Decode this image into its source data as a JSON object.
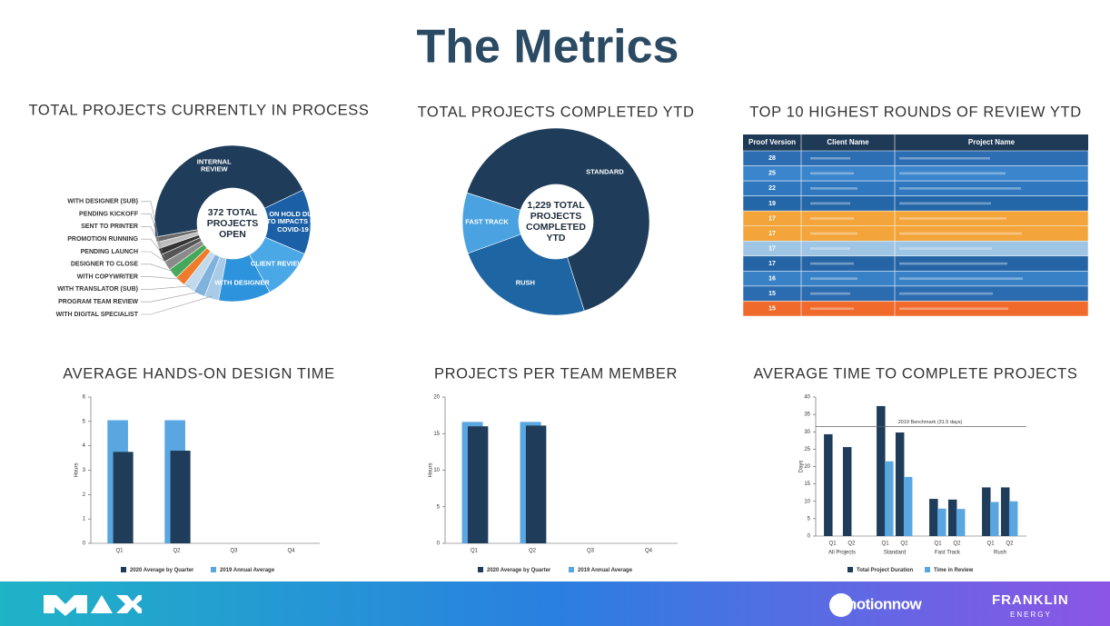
{
  "title": "The Metrics",
  "chart_data": [
    {
      "type": "pie",
      "title": "TOTAL PROJECTS CURRENTLY IN PROCESS",
      "center_label": "372 TOTAL PROJECTS OPEN",
      "categories": [
        "INTERNAL REVIEW",
        "ON HOLD DUE TO IMPACTS OF COVID-19",
        "CLIENT REVIEW",
        "WITH DESIGNER",
        "WITH DIGITAL SPECIALIST",
        "PROGRAM TEAM REVIEW",
        "WITH TRANSLATOR (SUB)",
        "WITH COPYWRITER",
        "DESIGNER TO CLOSE",
        "PENDING LAUNCH",
        "PROMOTION RUNNING",
        "SENT TO PRINTER",
        "PENDING KICKOFF",
        "WITH DESIGNER (SUB)"
      ],
      "values": [
        170,
        50,
        40,
        40,
        11,
        9,
        9,
        8,
        8,
        7,
        6,
        5,
        5,
        4
      ],
      "colors": [
        "#1f3d5a",
        "#1b5fa6",
        "#4ba8e6",
        "#2c93dc",
        "#a8cbe8",
        "#7fb2dd",
        "#c3d9ec",
        "#f07b2a",
        "#46a85a",
        "#8a8a8a",
        "#555555",
        "#333333",
        "#bdbdbd",
        "#6b6b6b"
      ]
    },
    {
      "type": "pie",
      "title": "TOTAL PROJECTS COMPLETED YTD",
      "center_label": "1,229 TOTAL PROJECTS COMPLETED YTD",
      "categories": [
        "STANDARD",
        "RUSH",
        "FAST TRACK"
      ],
      "values": [
        800,
        300,
        129
      ],
      "colors": [
        "#1f3d5a",
        "#1d65a3",
        "#4aa3e0"
      ]
    },
    {
      "type": "bar",
      "title": "AVERAGE HANDS-ON DESIGN TIME",
      "y_label": "Hours",
      "bar_mode": "overlap",
      "categories": [
        "Q1",
        "Q2",
        "Q3",
        "Q4"
      ],
      "series": [
        {
          "name": "2020 Average by Quarter",
          "color": "#1f3d5a",
          "values": [
            3.75,
            3.8,
            null,
            null
          ]
        },
        {
          "name": "2019 Annual Average",
          "color": "#5aa6e0",
          "values": [
            5.05,
            5.05,
            null,
            null
          ]
        }
      ],
      "ylim": [
        0,
        6
      ],
      "yticks": [
        0,
        1,
        2,
        3,
        4,
        5,
        6
      ],
      "grid": false
    },
    {
      "type": "bar",
      "title": "PROJECTS PER TEAM MEMBER",
      "y_label": "Hours",
      "bar_mode": "overlap",
      "categories": [
        "Q1",
        "Q2",
        "Q3",
        "Q4"
      ],
      "series": [
        {
          "name": "2020 Average by Quarter",
          "color": "#1f3d5a",
          "values": [
            16,
            16.1,
            null,
            null
          ]
        },
        {
          "name": "2019 Annual Average",
          "color": "#5aa6e0",
          "values": [
            16.6,
            16.6,
            null,
            null
          ]
        }
      ],
      "ylim": [
        0,
        20
      ],
      "yticks": [
        0,
        5,
        10,
        15,
        20
      ],
      "grid": false
    },
    {
      "type": "bar",
      "title": "AVERAGE TIME TO COMPLETE PROJECTS",
      "y_label": "Days",
      "bar_mode": "grouped",
      "categories": [
        "Q1",
        "Q2",
        "Q1",
        "Q2",
        "Q1",
        "Q2",
        "Q1",
        "Q2"
      ],
      "category_groups": [
        "All Projects",
        "Standard",
        "Fast Track",
        "Rush"
      ],
      "series": [
        {
          "name": "Total Project Duration",
          "color": "#1f3d5a",
          "values": [
            29.3,
            25.6,
            37.4,
            29.8,
            10.7,
            10.5,
            14,
            14
          ]
        },
        {
          "name": "Time in Review",
          "color": "#5aa6e0",
          "values": [
            null,
            null,
            21.5,
            17,
            7.9,
            7.8,
            9.8,
            10
          ]
        }
      ],
      "reference_line": {
        "value": 31.5,
        "label": "2019 Benchmark (31.5 days)"
      },
      "ylim": [
        0,
        40
      ],
      "yticks": [
        0,
        5,
        10,
        15,
        20,
        25,
        30,
        35,
        40
      ],
      "grid": false
    }
  ],
  "table": {
    "title": "TOP 10 HIGHEST ROUNDS OF REVIEW YTD",
    "columns": [
      "Proof Version",
      "Client Name",
      "Project Name"
    ],
    "header_color": "#1e3a56",
    "proof_versions": [
      28,
      25,
      22,
      19,
      17,
      17,
      17,
      17,
      16,
      15,
      15
    ],
    "row_colors": [
      "#2d6eb3",
      "#3a85cc",
      "#2f78c0",
      "#2467a8",
      "#f3a53b",
      "#f3a53b",
      "#9fc5e5",
      "#2565a6",
      "#3981c7",
      "#2b6cb0",
      "#f06a2b"
    ]
  },
  "footer": {
    "logos": [
      "inmotionnow",
      "FRANKLIN",
      "ENERGY"
    ]
  }
}
